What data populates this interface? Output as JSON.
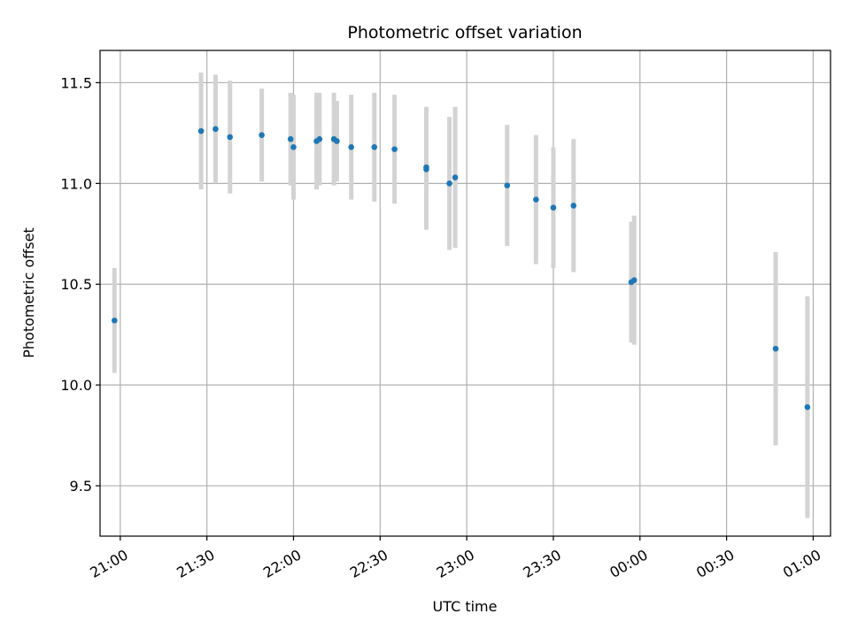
{
  "chart_data": {
    "type": "scatter",
    "title": "Photometric offset variation",
    "xlabel": "UTC time",
    "ylabel": "Photometric offset",
    "grid": true,
    "x_axis_type": "time",
    "xlim": [
      "20:53",
      "01:06"
    ],
    "ylim": [
      9.25,
      11.66
    ],
    "x_tick_labels": [
      "21:00",
      "21:30",
      "22:00",
      "22:30",
      "23:00",
      "23:30",
      "00:00",
      "00:30",
      "01:00"
    ],
    "y_ticks": [
      9.5,
      10.0,
      10.5,
      11.0,
      11.5
    ],
    "y_tick_labels": [
      "9.5",
      "10.0",
      "10.5",
      "11.0",
      "11.5"
    ],
    "colors": {
      "marker": "#1f77b4",
      "errorbar": "#d3d3d3",
      "grid": "#b0b0b0"
    },
    "points": [
      {
        "x": "20:58",
        "y": 10.32,
        "yerr": 0.26
      },
      {
        "x": "21:28",
        "y": 11.26,
        "yerr": 0.29
      },
      {
        "x": "21:33",
        "y": 11.27,
        "yerr": 0.27
      },
      {
        "x": "21:38",
        "y": 11.23,
        "yerr": 0.28
      },
      {
        "x": "21:49",
        "y": 11.24,
        "yerr": 0.23
      },
      {
        "x": "21:59",
        "y": 11.22,
        "yerr": 0.23
      },
      {
        "x": "22:00",
        "y": 11.18,
        "yerr": 0.26
      },
      {
        "x": "22:08",
        "y": 11.21,
        "yerr": 0.24
      },
      {
        "x": "22:09",
        "y": 11.22,
        "yerr": 0.23
      },
      {
        "x": "22:14",
        "y": 11.22,
        "yerr": 0.23
      },
      {
        "x": "22:15",
        "y": 11.21,
        "yerr": 0.2
      },
      {
        "x": "22:20",
        "y": 11.18,
        "yerr": 0.26
      },
      {
        "x": "22:28",
        "y": 11.18,
        "yerr": 0.27
      },
      {
        "x": "22:35",
        "y": 11.17,
        "yerr": 0.27
      },
      {
        "x": "22:46",
        "y": 11.07,
        "yerr": 0.3
      },
      {
        "x": "22:46",
        "y": 11.08,
        "yerr": 0.3
      },
      {
        "x": "22:54",
        "y": 11.0,
        "yerr": 0.33
      },
      {
        "x": "22:56",
        "y": 11.03,
        "yerr": 0.35
      },
      {
        "x": "23:14",
        "y": 10.99,
        "yerr": 0.3
      },
      {
        "x": "23:24",
        "y": 10.92,
        "yerr": 0.32
      },
      {
        "x": "23:30",
        "y": 10.88,
        "yerr": 0.3
      },
      {
        "x": "23:37",
        "y": 10.89,
        "yerr": 0.33
      },
      {
        "x": "23:57",
        "y": 10.51,
        "yerr": 0.3
      },
      {
        "x": "23:58",
        "y": 10.52,
        "yerr": 0.32
      },
      {
        "x": "00:47",
        "y": 10.18,
        "yerr": 0.48
      },
      {
        "x": "00:58",
        "y": 9.89,
        "yerr": 0.55
      }
    ]
  }
}
